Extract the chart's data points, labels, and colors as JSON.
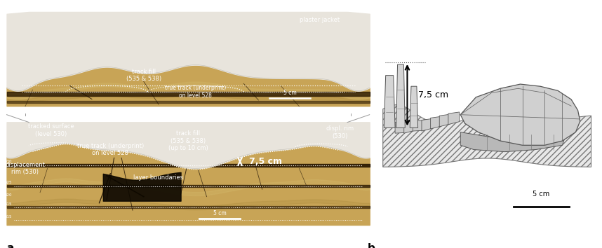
{
  "figure_width": 8.58,
  "figure_height": 3.54,
  "dpi": 100,
  "bg_color": "#ffffff",
  "panel_a_label": "a",
  "panel_b_label": "b",
  "photo_bg": "#111111",
  "rock_color": "#c8a456",
  "rock_dark": "#8b6e20",
  "rock_light": "#ddc87a",
  "plaster_color": "#e8e4dc",
  "dark_layer_color": "#2a1800",
  "crack_color": "#1a0d00",
  "white_text": "#ffffff",
  "black_text": "#000000",
  "label_fontsize": 11,
  "annotation_fontsize": 6.0,
  "panel_b_measurement": "7,5 cm",
  "panel_b_scale": "5 cm",
  "hatch_color": "#bbbbbb",
  "fossil_fill": "#d8d8d8",
  "fossil_edge": "#555555"
}
